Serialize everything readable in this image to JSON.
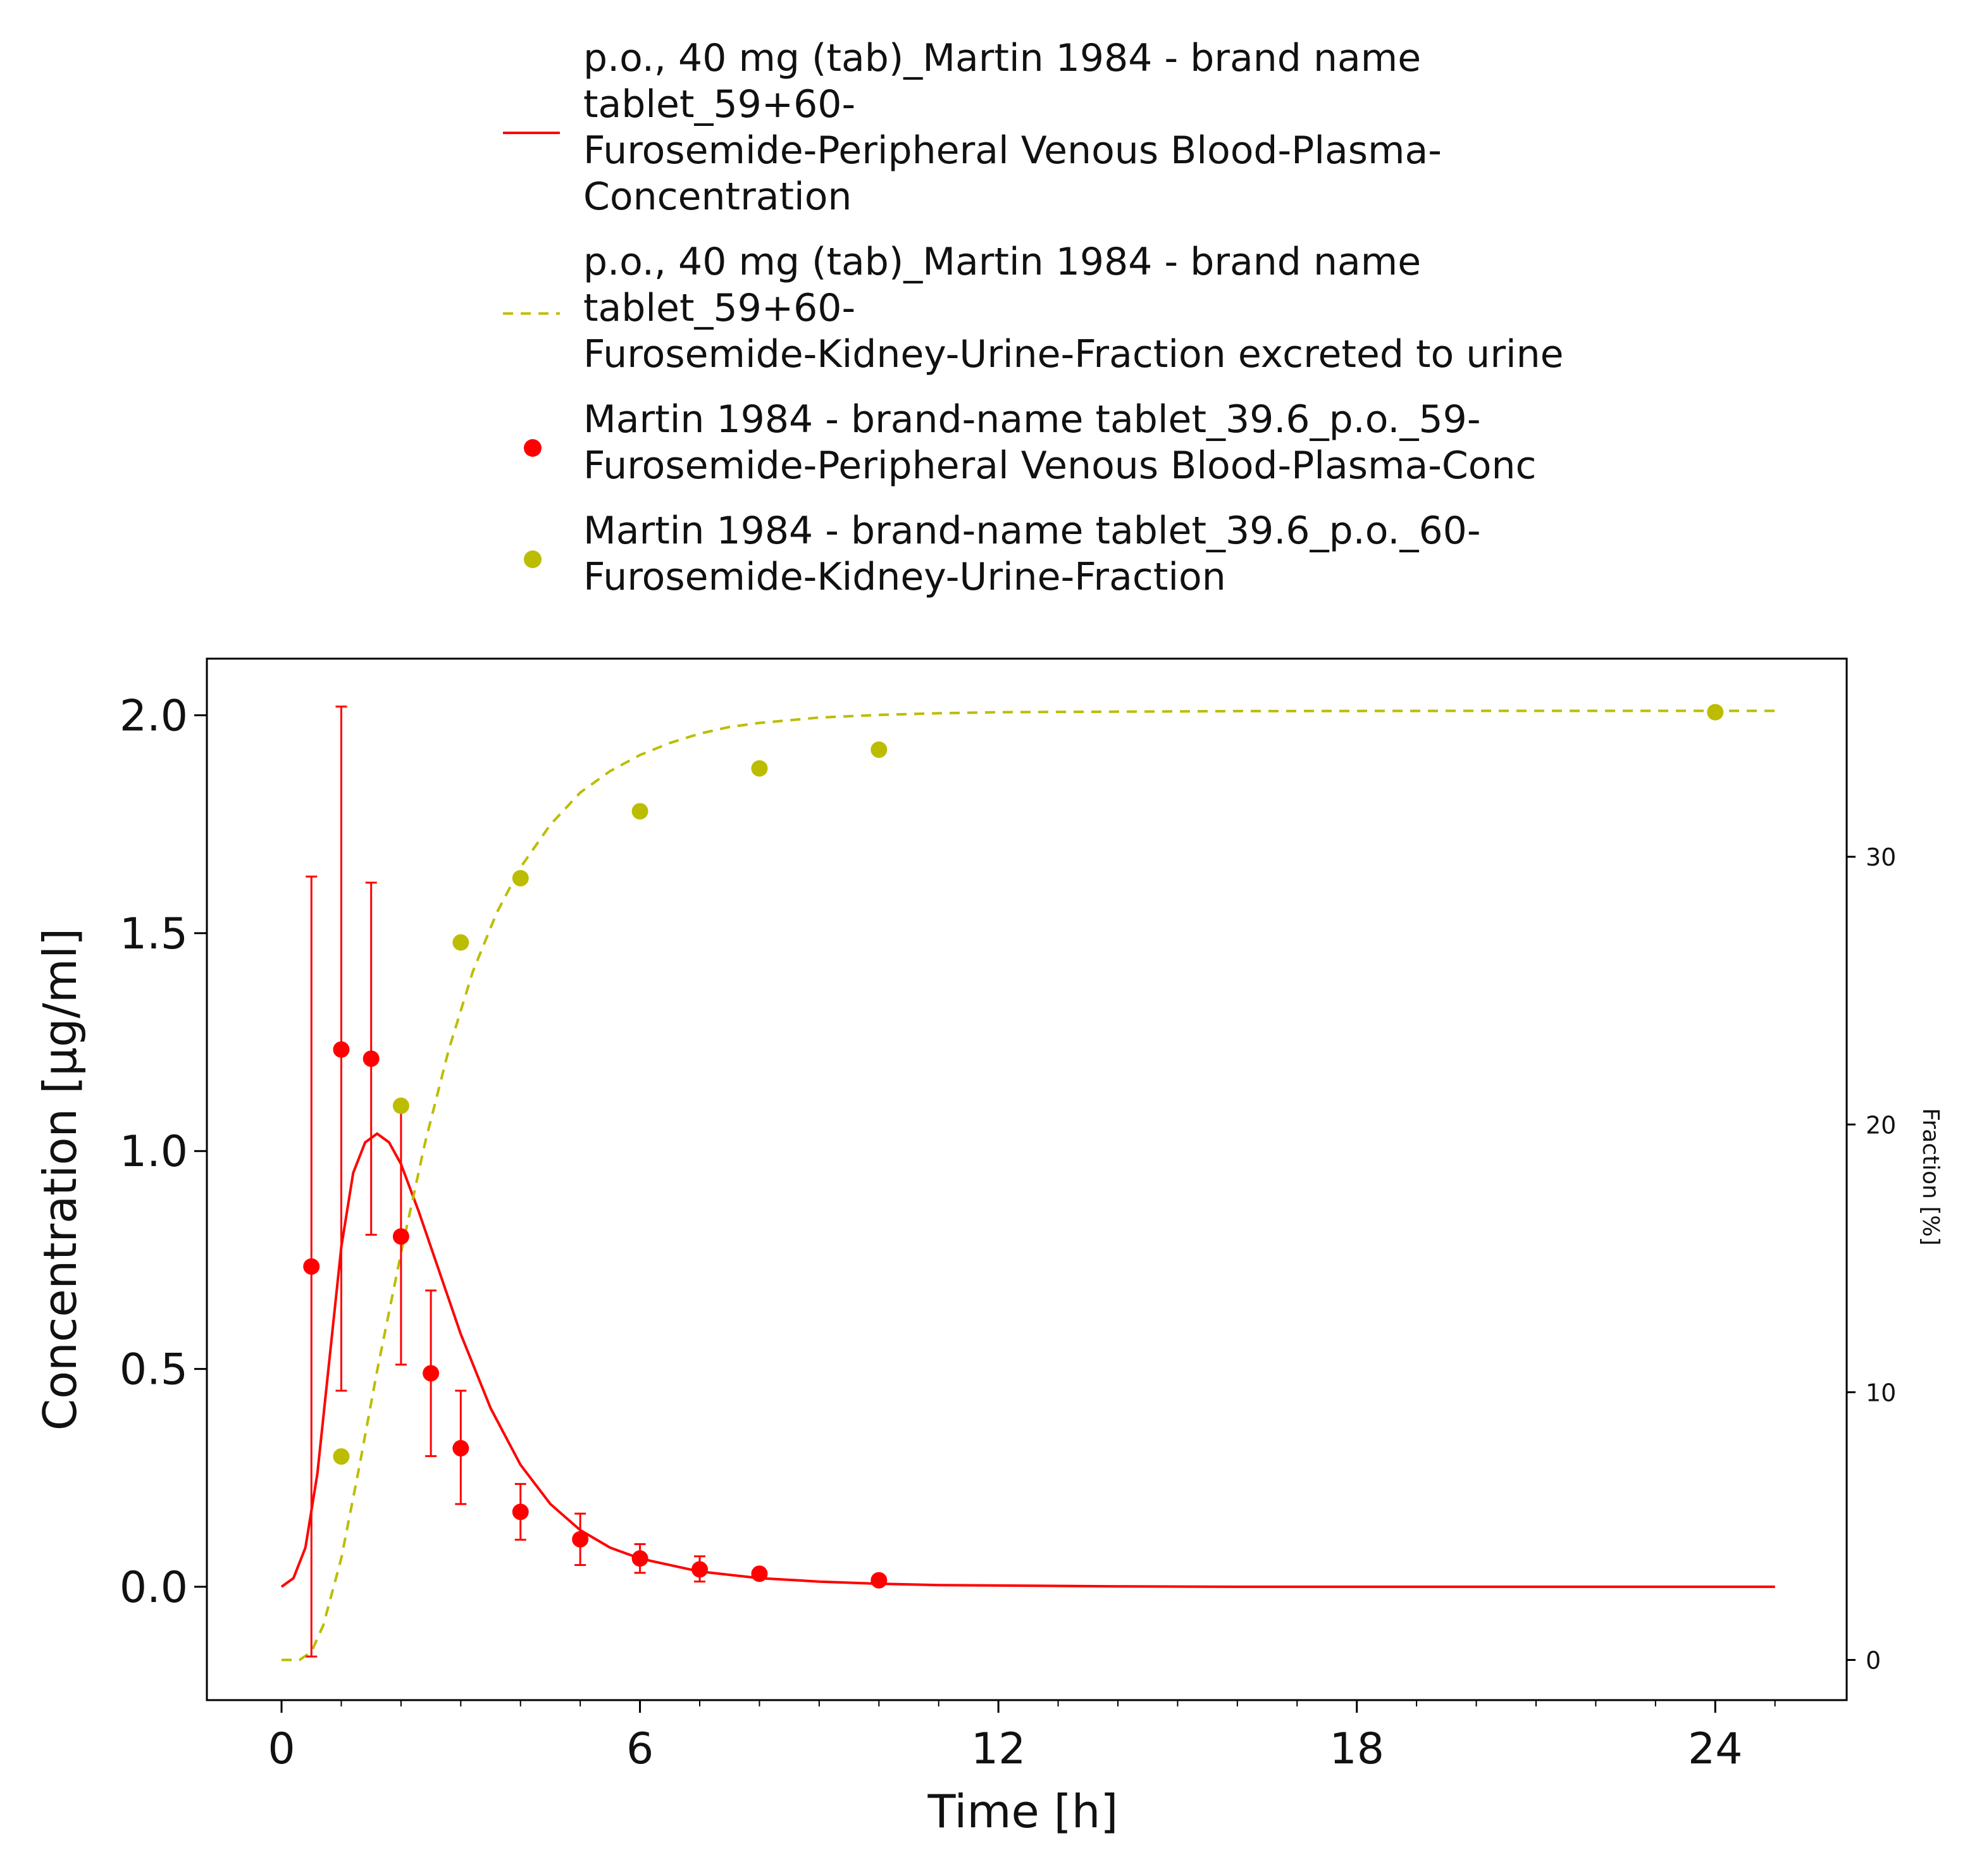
{
  "chart_data": {
    "type": "line",
    "x_axis": {
      "label": "Time [h]",
      "ticks": [
        "0",
        "6",
        "12",
        "18",
        "24"
      ],
      "range": [
        -1.25,
        26.2
      ]
    },
    "y_axis_left": {
      "label": "Concentration [µg/ml]",
      "ticks": [
        "0.0",
        "0.5",
        "1.0",
        "1.5",
        "2.0"
      ],
      "range": [
        -0.26,
        2.13
      ]
    },
    "y_axis_right": {
      "label": "Fraction [%]",
      "ticks": [
        "0",
        "10",
        "20",
        "30"
      ],
      "range": [
        -1.5,
        37.4
      ]
    },
    "grid": false,
    "legend_position": "top",
    "series": [
      {
        "kind": "simulation-line",
        "axis": "left",
        "color": "#ff0000",
        "dash": "solid",
        "name_lines": [
          "p.o., 40 mg (tab)_Martin 1984 - brand name",
          "tablet_59+60-",
          "Furosemide-Peripheral Venous Blood-Plasma-",
          "Concentration"
        ],
        "x": [
          0,
          0.2,
          0.4,
          0.6,
          0.8,
          1.0,
          1.2,
          1.4,
          1.6,
          1.8,
          2.0,
          2.3,
          2.6,
          3.0,
          3.5,
          4.0,
          4.5,
          5.0,
          5.5,
          6.0,
          7.0,
          8.0,
          9.0,
          10.0,
          11.0,
          12.0,
          14.0,
          16.0,
          20.0,
          25.0
        ],
        "y": [
          0.0,
          0.02,
          0.09,
          0.26,
          0.52,
          0.78,
          0.95,
          1.02,
          1.04,
          1.02,
          0.97,
          0.86,
          0.74,
          0.58,
          0.41,
          0.28,
          0.19,
          0.13,
          0.09,
          0.065,
          0.035,
          0.02,
          0.012,
          0.007,
          0.004,
          0.003,
          0.001,
          0.0,
          0.0,
          0.0
        ]
      },
      {
        "kind": "simulation-line",
        "axis": "right",
        "color": "#bcbd00",
        "dash": "dashed",
        "name_lines": [
          "p.o., 40 mg (tab)_Martin 1984 - brand name",
          "tablet_59+60-",
          "Furosemide-Kidney-Urine-Fraction excreted to urine"
        ],
        "x": [
          0,
          0.3,
          0.5,
          0.7,
          1.0,
          1.3,
          1.6,
          2.0,
          2.4,
          2.8,
          3.2,
          3.6,
          4.0,
          4.5,
          5.0,
          5.5,
          6.0,
          6.5,
          7.0,
          7.5,
          8.0,
          9.0,
          10.0,
          11.0,
          12.0,
          14.0,
          16.0,
          20.0,
          25.0
        ],
        "y": [
          0.0,
          0.0,
          0.3,
          1.3,
          3.8,
          7.2,
          10.8,
          15.2,
          19.3,
          22.8,
          25.7,
          27.9,
          29.6,
          31.2,
          32.4,
          33.2,
          33.8,
          34.25,
          34.6,
          34.85,
          35.0,
          35.2,
          35.3,
          35.36,
          35.4,
          35.42,
          35.44,
          35.45,
          35.45
        ]
      },
      {
        "kind": "observed-points",
        "axis": "left",
        "color": "#ff0000",
        "marker": "circle",
        "name_lines": [
          "Martin 1984 - brand-name tablet_39.6_p.o._59-",
          "Furosemide-Peripheral Venous Blood-Plasma-Conc"
        ],
        "x": [
          0.5,
          1.0,
          1.5,
          2.0,
          2.5,
          3.0,
          4.0,
          5.0,
          6.0,
          7.0,
          8.0,
          10.0
        ],
        "y": [
          0.735,
          1.233,
          1.212,
          0.804,
          0.49,
          0.318,
          0.172,
          0.109,
          0.065,
          0.04,
          0.03,
          0.015
        ],
        "error_low": [
          -0.16,
          0.45,
          0.808,
          0.51,
          0.3,
          0.19,
          0.108,
          0.05,
          0.032,
          0.012,
          0.028,
          0.015
        ],
        "error_high": [
          1.63,
          2.02,
          1.616,
          1.098,
          0.68,
          0.45,
          0.236,
          0.168,
          0.098,
          0.07,
          0.034,
          0.017
        ]
      },
      {
        "kind": "observed-points",
        "axis": "right",
        "color": "#bcbd00",
        "marker": "circle",
        "name_lines": [
          "Martin 1984 - brand-name tablet_39.6_p.o._60-",
          "Furosemide-Kidney-Urine-Fraction"
        ],
        "x": [
          1.0,
          2.0,
          3.0,
          4.0,
          6.0,
          8.0,
          10.0,
          24.0
        ],
        "y": [
          7.6,
          20.7,
          26.8,
          29.2,
          31.7,
          33.3,
          34.0,
          35.4
        ]
      }
    ]
  }
}
